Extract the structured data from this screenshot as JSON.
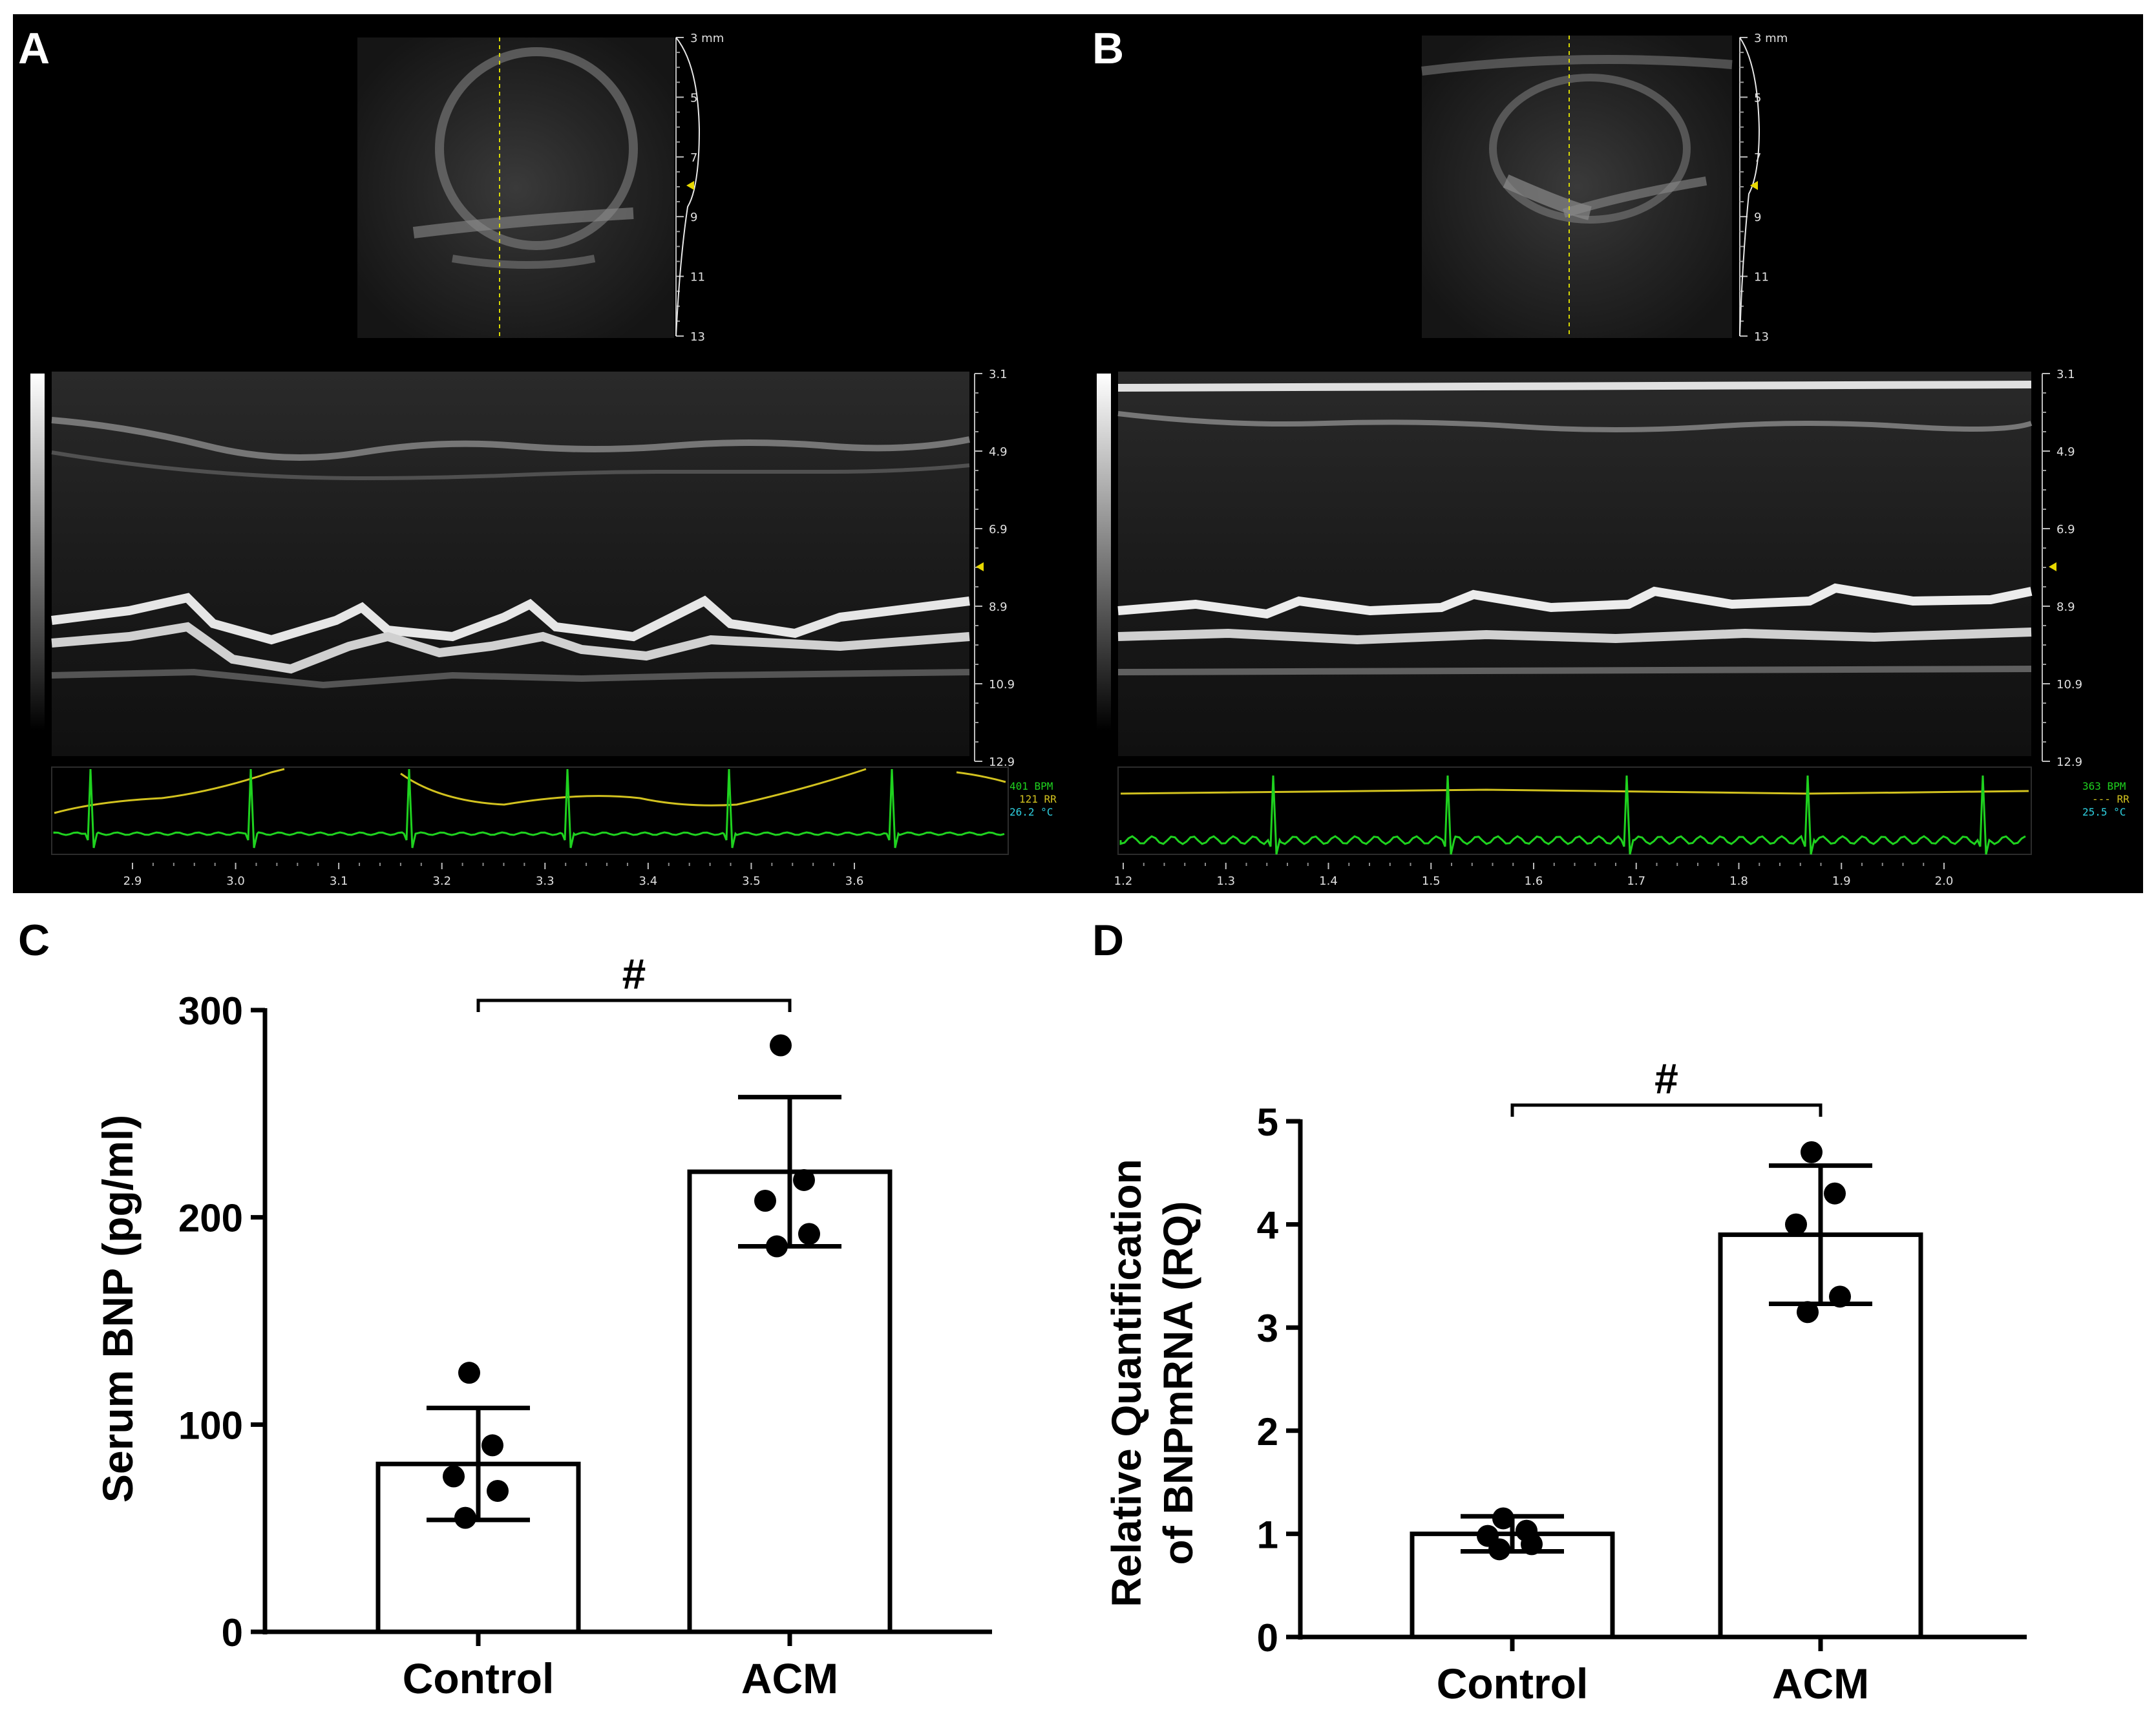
{
  "panels": {
    "A": {
      "letter": "A",
      "bmode_depth_labels": [
        "3 mm",
        "5",
        "7",
        "9",
        "11",
        "13"
      ],
      "mmode_depth_labels": [
        "3.1",
        "4.9",
        "6.9",
        "8.9",
        "10.9",
        "12.9"
      ],
      "time_labels": [
        "2.9",
        "3.0",
        "3.1",
        "3.2",
        "3.3",
        "3.4",
        "3.5",
        "3.6"
      ],
      "ecg_info": {
        "bpm": "401 BPM",
        "rr": "121 RR",
        "temp": "26.2 °C"
      },
      "colors": {
        "ecg": "#1fd21f",
        "resp": "#d2c21f",
        "temp": "#2fd0e0"
      }
    },
    "B": {
      "letter": "B",
      "bmode_depth_labels": [
        "3 mm",
        "5",
        "7",
        "9",
        "11",
        "13"
      ],
      "mmode_depth_labels": [
        "3.1",
        "4.9",
        "6.9",
        "8.9",
        "10.9",
        "12.9"
      ],
      "time_labels": [
        "1.2",
        "1.3",
        "1.4",
        "1.5",
        "1.6",
        "1.7",
        "1.8",
        "1.9",
        "2.0"
      ],
      "ecg_info": {
        "bpm": "363 BPM",
        "rr": "--- RR",
        "temp": "25.5 °C"
      },
      "colors": {
        "ecg": "#1fd21f",
        "resp": "#d2c21f",
        "temp": "#2fd0e0"
      }
    }
  },
  "chart_data": [
    {
      "panel": "C",
      "type": "bar",
      "title": "",
      "ylabel": "Serum BNP  (pg/ml)",
      "xlabel": "",
      "categories": [
        "Control",
        "ACM"
      ],
      "values": [
        81,
        222
      ],
      "error": [
        27,
        36
      ],
      "points": [
        [
          125,
          90,
          75,
          68,
          55
        ],
        [
          283,
          218,
          208,
          192,
          186
        ]
      ],
      "ylim": [
        0,
        300
      ],
      "yticks": [
        "0",
        "100",
        "200",
        "300"
      ],
      "significance": "#"
    },
    {
      "panel": "D",
      "type": "bar",
      "title": "",
      "ylabel_line1": "Relative Quantification",
      "ylabel_line2": "of BNPmRNA (RQ)",
      "xlabel": "",
      "categories": [
        "Control",
        "ACM"
      ],
      "values": [
        1.0,
        3.9
      ],
      "error": [
        0.17,
        0.67
      ],
      "points": [
        [
          1.15,
          1.03,
          0.98,
          0.9,
          0.85
        ],
        [
          4.7,
          4.3,
          4.0,
          3.3,
          3.15
        ]
      ],
      "ylim": [
        0,
        5
      ],
      "yticks": [
        "0",
        "1",
        "2",
        "3",
        "4",
        "5"
      ],
      "significance": "#"
    }
  ]
}
